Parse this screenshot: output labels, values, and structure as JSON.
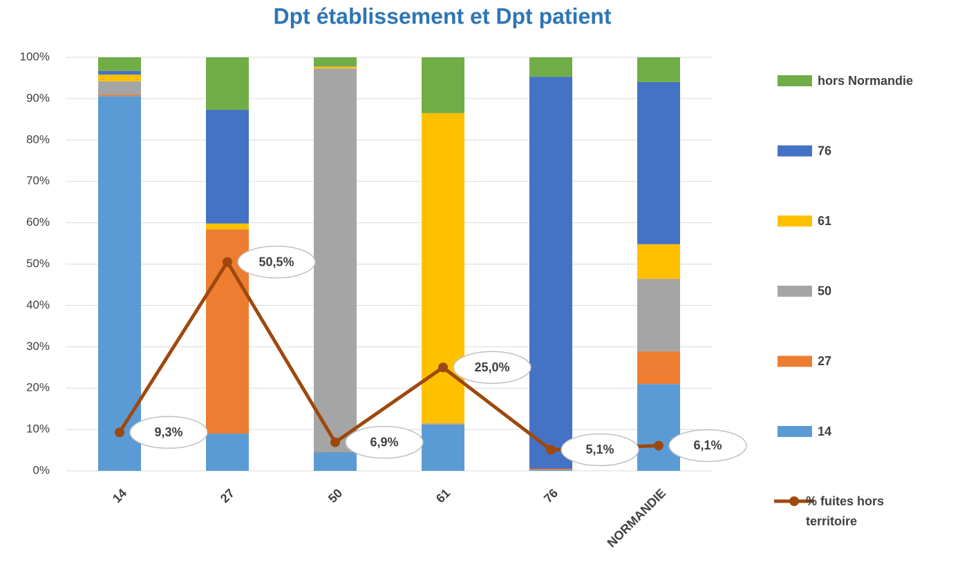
{
  "chart_data": {
    "type": "bar",
    "stacked": true,
    "title": "Dpt établissement et Dpt patient",
    "categories": [
      "14",
      "27",
      "50",
      "61",
      "76",
      "NORMANDIE"
    ],
    "series": [
      {
        "name": "14",
        "color": "#5b9bd5",
        "values": [
          90.6,
          9.0,
          4.5,
          11.2,
          0.2,
          21.0
        ]
      },
      {
        "name": "27",
        "color": "#ed7d31",
        "values": [
          0.3,
          49.4,
          0.1,
          0.1,
          0.3,
          7.9
        ]
      },
      {
        "name": "50",
        "color": "#a5a5a5",
        "values": [
          3.3,
          0,
          92.7,
          0.2,
          0,
          17.5
        ]
      },
      {
        "name": "61",
        "color": "#ffc000",
        "values": [
          1.6,
          1.4,
          0.5,
          75.0,
          0,
          8.4
        ]
      },
      {
        "name": "76",
        "color": "#4472c4",
        "values": [
          0.9,
          27.5,
          0.1,
          0,
          94.8,
          39.2
        ]
      },
      {
        "name": "hors Normandie",
        "color": "#70ad47",
        "values": [
          3.3,
          12.7,
          2.1,
          13.5,
          4.7,
          6.0
        ]
      }
    ],
    "line": {
      "name": "% fuites hors territoire",
      "color": "#9e480e",
      "values": [
        9.3,
        50.5,
        6.9,
        25.0,
        5.1,
        6.1
      ],
      "value_labels": [
        "9,3%",
        "50,5%",
        "6,9%",
        "25,0%",
        "5,1%",
        "6,1%"
      ]
    },
    "ylim": [
      0,
      100
    ],
    "yticks": [
      {
        "value": 0,
        "label": "0%"
      },
      {
        "value": 10,
        "label": "10%"
      },
      {
        "value": 20,
        "label": "20%"
      },
      {
        "value": 30,
        "label": "30%"
      },
      {
        "value": 40,
        "label": "40%"
      },
      {
        "value": 50,
        "label": "50%"
      },
      {
        "value": 60,
        "label": "60%"
      },
      {
        "value": 70,
        "label": "70%"
      },
      {
        "value": 80,
        "label": "80%"
      },
      {
        "value": 90,
        "label": "90%"
      },
      {
        "value": 100,
        "label": "100%"
      }
    ],
    "grid": true,
    "legend": "right"
  }
}
